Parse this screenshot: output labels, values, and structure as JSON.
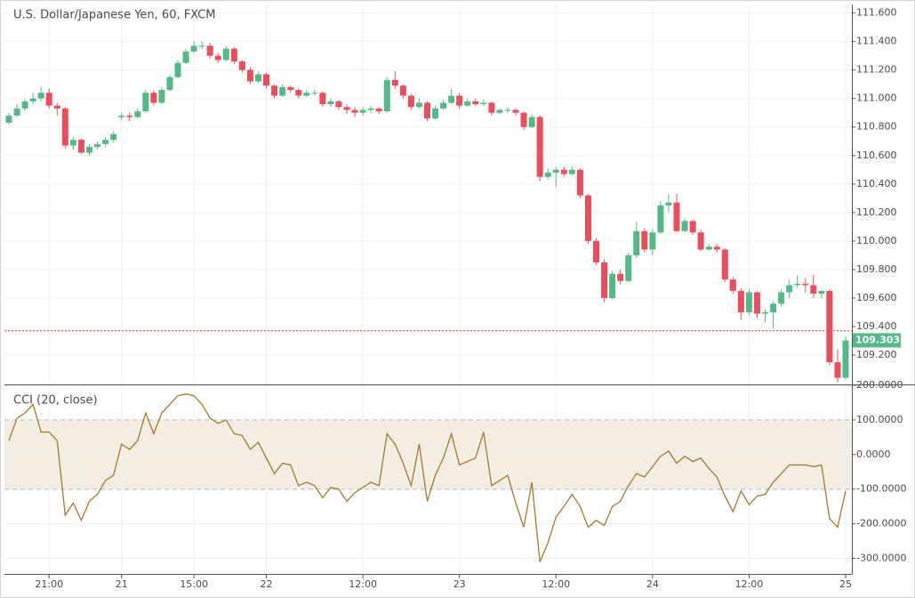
{
  "chart_data": [
    {
      "type": "candlestick",
      "title": "U.S. Dollar/Japanese Yen, 60, FXCM",
      "categories": [
        null,
        null,
        null,
        null,
        null,
        "21:00",
        null,
        null,
        null,
        null,
        null,
        null,
        null,
        null,
        "21",
        null,
        null,
        null,
        null,
        null,
        null,
        null,
        null,
        "15:00",
        null,
        null,
        null,
        null,
        null,
        null,
        null,
        null,
        "22",
        null,
        null,
        null,
        null,
        null,
        null,
        null,
        null,
        null,
        null,
        null,
        "12:00",
        null,
        null,
        null,
        null,
        null,
        null,
        null,
        null,
        null,
        null,
        null,
        "23",
        null,
        null,
        null,
        null,
        null,
        null,
        null,
        null,
        null,
        null,
        null,
        "12:00",
        null,
        null,
        null,
        null,
        null,
        null,
        null,
        null,
        null,
        null,
        null,
        "24",
        null,
        null,
        null,
        null,
        null,
        null,
        null,
        null,
        null,
        null,
        null,
        "12:00",
        null,
        null,
        null,
        null,
        null,
        null,
        null,
        null,
        null,
        null,
        null,
        "25"
      ],
      "ohlc": [
        [
          110.83,
          110.9,
          110.82,
          110.88
        ],
        [
          110.88,
          110.96,
          110.87,
          110.93
        ],
        [
          110.93,
          111.0,
          110.91,
          110.98
        ],
        [
          110.98,
          111.04,
          110.96,
          111.0
        ],
        [
          111.0,
          111.08,
          110.98,
          111.04
        ],
        [
          111.04,
          111.07,
          110.93,
          110.95
        ],
        [
          110.95,
          110.97,
          110.88,
          110.93
        ],
        [
          110.93,
          110.94,
          110.65,
          110.67
        ],
        [
          110.67,
          110.73,
          110.64,
          110.71
        ],
        [
          110.71,
          110.72,
          110.61,
          110.62
        ],
        [
          110.62,
          110.68,
          110.6,
          110.66
        ],
        [
          110.66,
          110.7,
          110.64,
          110.68
        ],
        [
          110.68,
          110.73,
          110.66,
          110.71
        ],
        [
          110.71,
          110.77,
          110.69,
          110.75
        ],
        [
          110.87,
          110.9,
          110.85,
          110.88
        ],
        [
          110.88,
          110.9,
          110.84,
          110.87
        ],
        [
          110.87,
          110.93,
          110.86,
          110.91
        ],
        [
          110.91,
          111.06,
          110.9,
          111.04
        ],
        [
          111.04,
          111.06,
          110.95,
          110.97
        ],
        [
          110.97,
          111.08,
          110.96,
          111.06
        ],
        [
          111.06,
          111.17,
          111.05,
          111.15
        ],
        [
          111.15,
          111.27,
          111.14,
          111.25
        ],
        [
          111.25,
          111.35,
          111.24,
          111.33
        ],
        [
          111.33,
          111.4,
          111.32,
          111.37
        ],
        [
          111.37,
          111.4,
          111.35,
          111.37
        ],
        [
          111.37,
          111.39,
          111.28,
          111.3
        ],
        [
          111.3,
          111.32,
          111.25,
          111.27
        ],
        [
          111.27,
          111.37,
          111.26,
          111.35
        ],
        [
          111.35,
          111.36,
          111.24,
          111.26
        ],
        [
          111.26,
          111.27,
          111.18,
          111.2
        ],
        [
          111.2,
          111.22,
          111.1,
          111.12
        ],
        [
          111.12,
          111.19,
          111.11,
          111.17
        ],
        [
          111.17,
          111.18,
          111.07,
          111.09
        ],
        [
          111.09,
          111.1,
          111.0,
          111.02
        ],
        [
          111.02,
          111.1,
          111.01,
          111.08
        ],
        [
          111.08,
          111.09,
          111.04,
          111.06
        ],
        [
          111.06,
          111.07,
          111.0,
          111.02
        ],
        [
          111.02,
          111.06,
          111.01,
          111.04
        ],
        [
          111.04,
          111.06,
          111.02,
          111.04
        ],
        [
          111.04,
          111.05,
          110.94,
          110.96
        ],
        [
          110.96,
          111.0,
          110.94,
          110.98
        ],
        [
          110.98,
          110.99,
          110.92,
          110.94
        ],
        [
          110.94,
          110.96,
          110.89,
          110.92
        ],
        [
          110.92,
          110.94,
          110.87,
          110.9
        ],
        [
          110.9,
          110.94,
          110.88,
          110.92
        ],
        [
          110.92,
          110.95,
          110.9,
          110.93
        ],
        [
          110.93,
          110.94,
          110.89,
          110.91
        ],
        [
          110.91,
          111.15,
          110.9,
          111.13
        ],
        [
          111.13,
          111.19,
          111.07,
          111.09
        ],
        [
          111.09,
          111.1,
          111.0,
          111.02
        ],
        [
          111.02,
          111.03,
          110.92,
          110.94
        ],
        [
          110.94,
          111.0,
          110.93,
          110.97
        ],
        [
          110.97,
          110.98,
          110.84,
          110.86
        ],
        [
          110.86,
          110.95,
          110.85,
          110.93
        ],
        [
          110.93,
          110.99,
          110.92,
          110.97
        ],
        [
          110.97,
          111.07,
          110.96,
          111.02
        ],
        [
          111.02,
          111.04,
          110.93,
          110.95
        ],
        [
          110.95,
          111.0,
          110.94,
          110.98
        ],
        [
          110.98,
          111.0,
          110.95,
          110.96
        ],
        [
          110.96,
          110.99,
          110.95,
          110.97
        ],
        [
          110.97,
          110.98,
          110.88,
          110.9
        ],
        [
          110.9,
          110.93,
          110.89,
          110.92
        ],
        [
          110.92,
          110.94,
          110.9,
          110.92
        ],
        [
          110.92,
          110.93,
          110.88,
          110.9
        ],
        [
          110.9,
          110.91,
          110.78,
          110.8
        ],
        [
          110.8,
          110.89,
          110.79,
          110.87
        ],
        [
          110.87,
          110.88,
          110.42,
          110.45
        ],
        [
          110.45,
          110.51,
          110.43,
          110.48
        ],
        [
          110.48,
          110.52,
          110.38,
          110.5
        ],
        [
          110.5,
          110.52,
          110.45,
          110.47
        ],
        [
          110.47,
          110.52,
          110.46,
          110.5
        ],
        [
          110.5,
          110.51,
          110.3,
          110.32
        ],
        [
          110.32,
          110.33,
          109.98,
          110.0
        ],
        [
          110.0,
          110.02,
          109.83,
          109.85
        ],
        [
          109.85,
          109.87,
          109.57,
          109.6
        ],
        [
          109.6,
          109.79,
          109.59,
          109.77
        ],
        [
          109.77,
          109.8,
          109.7,
          109.72
        ],
        [
          109.72,
          109.92,
          109.71,
          109.9
        ],
        [
          109.9,
          110.13,
          109.88,
          110.07
        ],
        [
          110.07,
          110.09,
          109.92,
          109.94
        ],
        [
          109.94,
          110.08,
          109.9,
          110.06
        ],
        [
          110.06,
          110.28,
          110.05,
          110.25
        ],
        [
          110.25,
          110.33,
          110.2,
          110.27
        ],
        [
          110.27,
          110.33,
          110.06,
          110.07
        ],
        [
          110.07,
          110.16,
          110.06,
          110.14
        ],
        [
          110.14,
          110.15,
          110.04,
          110.06
        ],
        [
          110.06,
          110.08,
          109.93,
          109.94
        ],
        [
          109.94,
          109.98,
          109.93,
          109.96
        ],
        [
          109.96,
          109.98,
          109.92,
          109.94
        ],
        [
          109.94,
          109.95,
          109.71,
          109.73
        ],
        [
          109.73,
          109.75,
          109.63,
          109.65
        ],
        [
          109.65,
          109.67,
          109.45,
          109.5
        ],
        [
          109.5,
          109.66,
          109.48,
          109.64
        ],
        [
          109.64,
          109.65,
          109.46,
          109.49
        ],
        [
          109.49,
          109.52,
          109.43,
          109.5
        ],
        [
          109.5,
          109.58,
          109.39,
          109.56
        ],
        [
          109.56,
          109.66,
          109.54,
          109.64
        ],
        [
          109.64,
          109.73,
          109.6,
          109.69
        ],
        [
          109.69,
          109.76,
          109.67,
          109.7
        ],
        [
          109.7,
          109.74,
          109.64,
          109.69
        ],
        [
          109.69,
          109.76,
          109.6,
          109.63
        ],
        [
          109.63,
          109.66,
          109.6,
          109.65
        ],
        [
          109.65,
          109.66,
          109.13,
          109.15
        ],
        [
          109.15,
          109.24,
          109.01,
          109.04
        ],
        [
          109.04,
          109.33,
          109.03,
          109.303
        ]
      ],
      "up_color": "#53b987",
      "down_color": "#eb4d5c",
      "ylim": [
        109.0,
        111.66
      ],
      "yticks": [
        {
          "value": 109.2,
          "label": "109.200"
        },
        {
          "value": 109.4,
          "label": "109.400"
        },
        {
          "value": 109.6,
          "label": "109.600"
        },
        {
          "value": 109.8,
          "label": "109.800"
        },
        {
          "value": 110.0,
          "label": "110.000"
        },
        {
          "value": 110.2,
          "label": "110.200"
        },
        {
          "value": 110.4,
          "label": "110.400"
        },
        {
          "value": 110.6,
          "label": "110.600"
        },
        {
          "value": 110.8,
          "label": "110.800"
        },
        {
          "value": 111.0,
          "label": "111.000"
        },
        {
          "value": 111.2,
          "label": "111.200"
        },
        {
          "value": 111.4,
          "label": "111.400"
        },
        {
          "value": 111.6,
          "label": "111.600"
        }
      ],
      "last_price": {
        "value": 109.303,
        "label": "109.303"
      },
      "price_line": 109.37,
      "price_line_color": "#e53935",
      "grid": true
    },
    {
      "type": "line",
      "title": "CCI (20, close)",
      "color": "#a27a2c",
      "values": [
        40,
        105,
        120,
        145,
        65,
        65,
        40,
        -175,
        -140,
        -190,
        -135,
        -115,
        -75,
        -60,
        30,
        15,
        40,
        120,
        60,
        120,
        145,
        170,
        175,
        170,
        145,
        105,
        90,
        100,
        60,
        55,
        15,
        35,
        -10,
        -55,
        -25,
        -30,
        -90,
        -80,
        -90,
        -125,
        -95,
        -100,
        -135,
        -110,
        -95,
        -80,
        -90,
        60,
        30,
        -25,
        -90,
        30,
        -135,
        -60,
        -10,
        60,
        -30,
        -20,
        -10,
        65,
        -90,
        -75,
        -60,
        -140,
        -210,
        -80,
        -310,
        -255,
        -180,
        -150,
        -115,
        -150,
        -210,
        -190,
        -205,
        -150,
        -135,
        -90,
        -55,
        -65,
        -35,
        -5,
        10,
        -25,
        -5,
        -20,
        -10,
        -40,
        -65,
        -120,
        -165,
        -105,
        -145,
        -120,
        -115,
        -80,
        -55,
        -30,
        -30,
        -30,
        -35,
        -30,
        -185,
        -210,
        -105
      ],
      "ylim": [
        -345,
        200
      ],
      "yticks": [
        {
          "value": -300,
          "label": "-300.0000"
        },
        {
          "value": -200,
          "label": "-200.0000"
        },
        {
          "value": -100,
          "label": "-100.0000"
        },
        {
          "value": 0,
          "label": "0.0000"
        },
        {
          "value": 100,
          "label": "100.0000"
        },
        {
          "value": 200,
          "label": "200.0000"
        }
      ],
      "band": [
        -100,
        100
      ],
      "band_color": "#f3ede3",
      "grid": true
    }
  ]
}
